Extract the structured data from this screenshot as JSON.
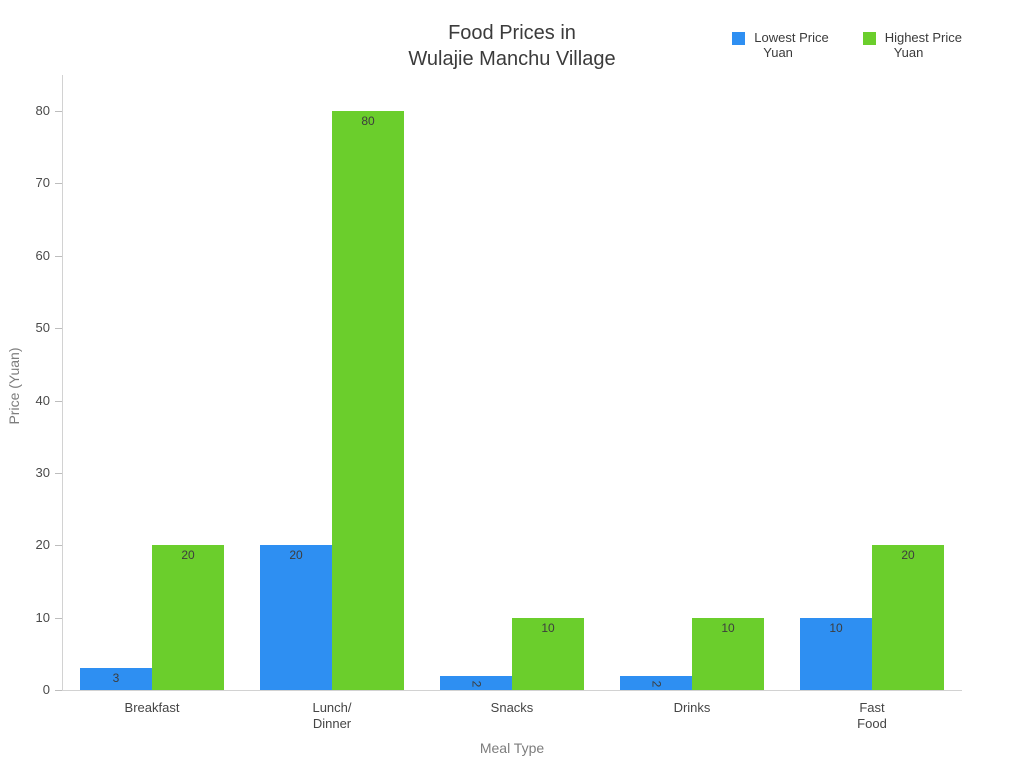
{
  "chart_data": {
    "type": "bar",
    "title": "Food Prices in Wulajie Manchu Village",
    "xlabel": "Meal Type",
    "ylabel": "Price (Yuan)",
    "categories": [
      "Breakfast",
      "Lunch/Dinner",
      "Snacks",
      "Drinks",
      "Fast Food"
    ],
    "series": [
      {
        "name": "Lowest Price Yuan",
        "color": "#2E8FF2",
        "values": [
          3,
          20,
          2,
          2,
          10
        ]
      },
      {
        "name": "Highest Price Yuan",
        "color": "#6BCE2C",
        "values": [
          20,
          80,
          10,
          10,
          20
        ]
      }
    ],
    "ylim": [
      0,
      80
    ],
    "yticks": [
      0,
      10,
      20,
      30,
      40,
      50,
      60,
      70,
      80
    ],
    "grid": false,
    "legend_position": "top-right",
    "bar_value_labels": true
  },
  "display": {
    "title_lines": [
      "Food Prices in",
      "Wulajie Manchu Village"
    ],
    "category_label_lines": [
      [
        "Breakfast"
      ],
      [
        "Lunch/",
        "Dinner"
      ],
      [
        "Snacks"
      ],
      [
        "Drinks"
      ],
      [
        "Fast",
        "Food"
      ]
    ],
    "legend": [
      {
        "label_lines": [
          "Lowest Price",
          "Yuan"
        ],
        "color": "#2E8FF2"
      },
      {
        "label_lines": [
          "Highest Price",
          "Yuan"
        ],
        "color": "#6BCE2C"
      }
    ]
  }
}
